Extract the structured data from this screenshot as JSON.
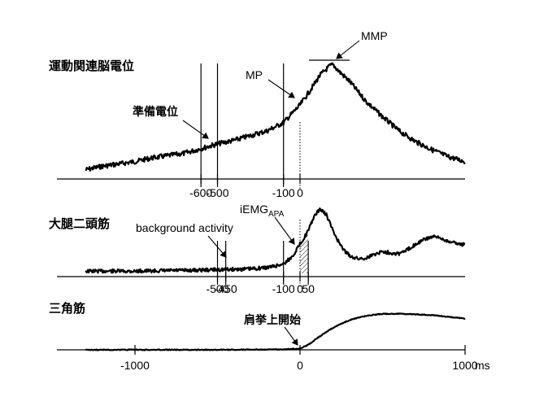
{
  "chart_data": [
    {
      "type": "line",
      "title": "運動関連脳電位",
      "x_ticks": [
        "-600",
        "-500",
        "-100",
        "0"
      ],
      "markers": [
        -600,
        -500,
        -100,
        0
      ],
      "annotations": [
        "準備電位",
        "MP",
        "MMP"
      ],
      "xlim": [
        -1300,
        1000
      ],
      "x": [
        -1300,
        -1200,
        -1100,
        -1000,
        -900,
        -800,
        -700,
        -600,
        -500,
        -400,
        -300,
        -200,
        -100,
        0,
        60,
        120,
        180,
        200,
        240,
        300,
        400,
        500,
        600,
        700,
        800,
        900,
        1000
      ],
      "values": [
        0.05,
        0.08,
        0.1,
        0.12,
        0.15,
        0.17,
        0.19,
        0.23,
        0.27,
        0.3,
        0.34,
        0.38,
        0.45,
        0.6,
        0.72,
        0.85,
        0.93,
        0.94,
        0.88,
        0.8,
        0.63,
        0.5,
        0.38,
        0.29,
        0.22,
        0.16,
        0.12
      ]
    },
    {
      "type": "line",
      "title": "大腿二頭筋",
      "x_ticks": [
        "-500",
        "-450",
        "-100",
        "0",
        "50"
      ],
      "markers": [
        -500,
        -450,
        -100,
        0,
        50
      ],
      "annotations": [
        "background activity",
        "iEMG",
        "APA"
      ],
      "xlim": [
        -1300,
        1000
      ],
      "x": [
        -1300,
        -1000,
        -700,
        -500,
        -300,
        -200,
        -150,
        -100,
        -50,
        0,
        50,
        80,
        120,
        160,
        200,
        250,
        300,
        350,
        400,
        450,
        500,
        550,
        600,
        650,
        700,
        750,
        800,
        850,
        900,
        950,
        1000
      ],
      "values": [
        0.03,
        0.03,
        0.04,
        0.05,
        0.06,
        0.08,
        0.1,
        0.13,
        0.22,
        0.4,
        0.58,
        0.75,
        0.88,
        0.8,
        0.58,
        0.36,
        0.24,
        0.2,
        0.21,
        0.26,
        0.3,
        0.28,
        0.27,
        0.32,
        0.4,
        0.46,
        0.5,
        0.48,
        0.44,
        0.41,
        0.39
      ]
    },
    {
      "type": "line",
      "title": "三角筋",
      "x_ticks": [
        "-1000",
        "0",
        "1000"
      ],
      "x_unit": "ms",
      "markers": [
        0
      ],
      "annotations": [
        "肩挙上開始"
      ],
      "xlim": [
        -1300,
        1000
      ],
      "x": [
        -1300,
        -1000,
        -500,
        -100,
        0,
        50,
        100,
        150,
        200,
        250,
        300,
        350,
        400,
        450,
        500,
        550,
        600,
        700,
        800,
        900,
        1000
      ],
      "values": [
        0.0,
        0.0,
        0.0,
        0.01,
        0.03,
        0.12,
        0.26,
        0.4,
        0.52,
        0.62,
        0.7,
        0.76,
        0.8,
        0.83,
        0.85,
        0.85,
        0.85,
        0.84,
        0.82,
        0.78,
        0.74
      ]
    }
  ]
}
